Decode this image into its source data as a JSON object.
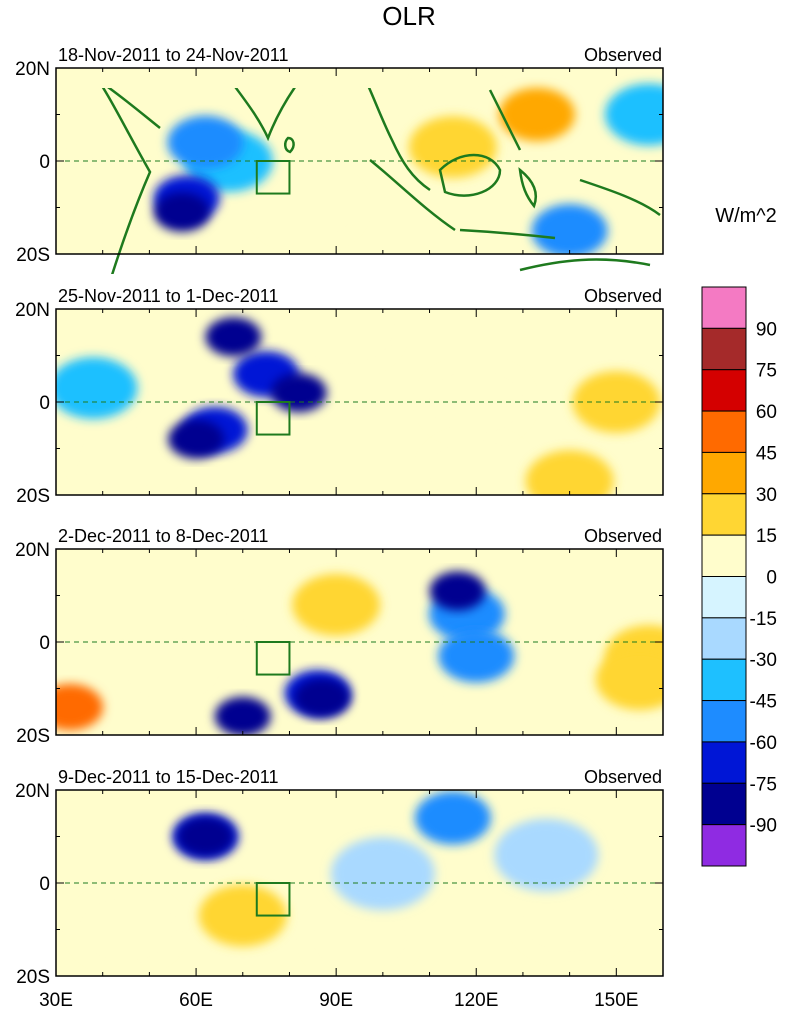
{
  "chart_data": {
    "type": "heatmap",
    "title": "OLR",
    "units": "W/m^2",
    "longitude_ticks": [
      "30E",
      "60E",
      "90E",
      "120E",
      "150E"
    ],
    "latitude_ticks": [
      "20N",
      "0",
      "20S"
    ],
    "lon_range": [
      30,
      160
    ],
    "lat_range": [
      -20,
      20
    ],
    "colorbar": {
      "labels": [
        "90",
        "75",
        "60",
        "45",
        "30",
        "15",
        "0",
        "-15",
        "-30",
        "-45",
        "-60",
        "-75",
        "-90"
      ],
      "colors": [
        "#f47ac3",
        "#a52a2a",
        "#d40000",
        "#ff6a00",
        "#ffa800",
        "#ffd633",
        "#fffdcc",
        "#d6f4ff",
        "#a9d9ff",
        "#1ec0ff",
        "#1e8cff",
        "#0016d6",
        "#000090",
        "#8f2be2"
      ]
    },
    "panels": [
      {
        "period": "18-Nov-2011 to 24-Nov-2011",
        "label": "Observed",
        "anomalies": [
          {
            "lon": 62,
            "lat": 4,
            "value": -45
          },
          {
            "lon": 58,
            "lat": -8,
            "value": -60
          },
          {
            "lon": 57,
            "lat": -11,
            "value": -75
          },
          {
            "lon": 67,
            "lat": 0,
            "value": -30
          },
          {
            "lon": 115,
            "lat": 3,
            "value": 30
          },
          {
            "lon": 133,
            "lat": 10,
            "value": 45
          },
          {
            "lon": 97,
            "lat": 15,
            "value": 15
          },
          {
            "lon": 84,
            "lat": -10,
            "value": 15
          },
          {
            "lon": 118,
            "lat": 14,
            "value": 15
          },
          {
            "lon": 140,
            "lat": -15,
            "value": -45
          },
          {
            "lon": 157,
            "lat": 10,
            "value": -30
          },
          {
            "lon": 40,
            "lat": -6,
            "value": 15
          }
        ]
      },
      {
        "period": "25-Nov-2011 to 1-Dec-2011",
        "label": "Observed",
        "anomalies": [
          {
            "lon": 68,
            "lat": 14,
            "value": -75
          },
          {
            "lon": 82,
            "lat": 2,
            "value": -75
          },
          {
            "lon": 64,
            "lat": -6,
            "value": -60
          },
          {
            "lon": 75,
            "lat": 6,
            "value": -60
          },
          {
            "lon": 60,
            "lat": -8,
            "value": -75
          },
          {
            "lon": 38,
            "lat": 3,
            "value": -30
          },
          {
            "lon": 92,
            "lat": 15,
            "value": 15
          },
          {
            "lon": 150,
            "lat": 0,
            "value": 30
          },
          {
            "lon": 140,
            "lat": -17,
            "value": 30
          },
          {
            "lon": 120,
            "lat": 0,
            "value": 15
          },
          {
            "lon": 120,
            "lat": -15,
            "value": 15
          },
          {
            "lon": 45,
            "lat": -12,
            "value": 15
          }
        ]
      },
      {
        "period": "2-Dec-2011 to 8-Dec-2011",
        "label": "Observed",
        "anomalies": [
          {
            "lon": 116,
            "lat": 11,
            "value": -75
          },
          {
            "lon": 118,
            "lat": 6,
            "value": -45
          },
          {
            "lon": 120,
            "lat": -3,
            "value": -45
          },
          {
            "lon": 86,
            "lat": -11,
            "value": -60
          },
          {
            "lon": 87,
            "lat": -12,
            "value": -75
          },
          {
            "lon": 70,
            "lat": -16,
            "value": -75
          },
          {
            "lon": 90,
            "lat": 8,
            "value": 30
          },
          {
            "lon": 80,
            "lat": 6,
            "value": 15
          },
          {
            "lon": 55,
            "lat": -6,
            "value": 15
          },
          {
            "lon": 103,
            "lat": -12,
            "value": 15
          },
          {
            "lon": 33,
            "lat": -14,
            "value": 60
          },
          {
            "lon": 157,
            "lat": -3,
            "value": 30
          },
          {
            "lon": 155,
            "lat": -8,
            "value": 30
          }
        ]
      },
      {
        "period": "9-Dec-2011 to 15-Dec-2011",
        "label": "Observed",
        "anomalies": [
          {
            "lon": 62,
            "lat": 10,
            "value": -60
          },
          {
            "lon": 62,
            "lat": 10,
            "value": -75
          },
          {
            "lon": 115,
            "lat": 14,
            "value": -45
          },
          {
            "lon": 70,
            "lat": -7,
            "value": 30
          },
          {
            "lon": 60,
            "lat": -4,
            "value": 15
          },
          {
            "lon": 95,
            "lat": -12,
            "value": 15
          },
          {
            "lon": 140,
            "lat": -8,
            "value": 15
          },
          {
            "lon": 135,
            "lat": 6,
            "value": -15
          },
          {
            "lon": 45,
            "lat": -10,
            "value": 15
          },
          {
            "lon": 100,
            "lat": 2,
            "value": -15
          }
        ]
      }
    ]
  }
}
